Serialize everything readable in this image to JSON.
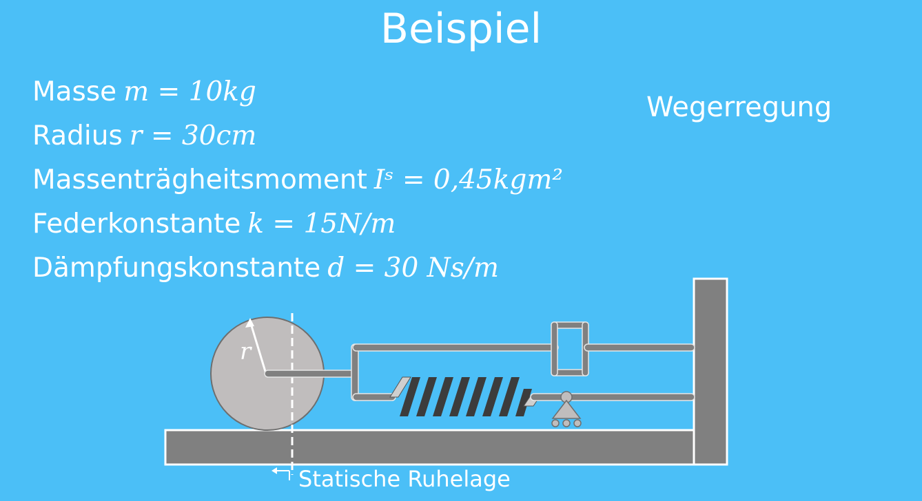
{
  "title": "Beispiel",
  "params": [
    {
      "label": "Masse",
      "expr": "m = 10kg"
    },
    {
      "label": "Radius",
      "expr": "r = 30cm"
    },
    {
      "label": "Massenträgheitsmoment",
      "expr": "Iˢ = 0,45kgm²"
    },
    {
      "label": "Federkonstante",
      "expr": "k = 15N/m"
    },
    {
      "label": "Dämpfungskonstante",
      "expr": "d = 30 Ns/m"
    }
  ],
  "side_label": "Wegerregung",
  "bottom_label": "Statische Ruhelage",
  "radius_symbol": "r",
  "colors": {
    "background": "#4bbff7",
    "component_fill": "#808080",
    "wheel_fill": "#c0bdbd",
    "text": "#ffffff"
  }
}
